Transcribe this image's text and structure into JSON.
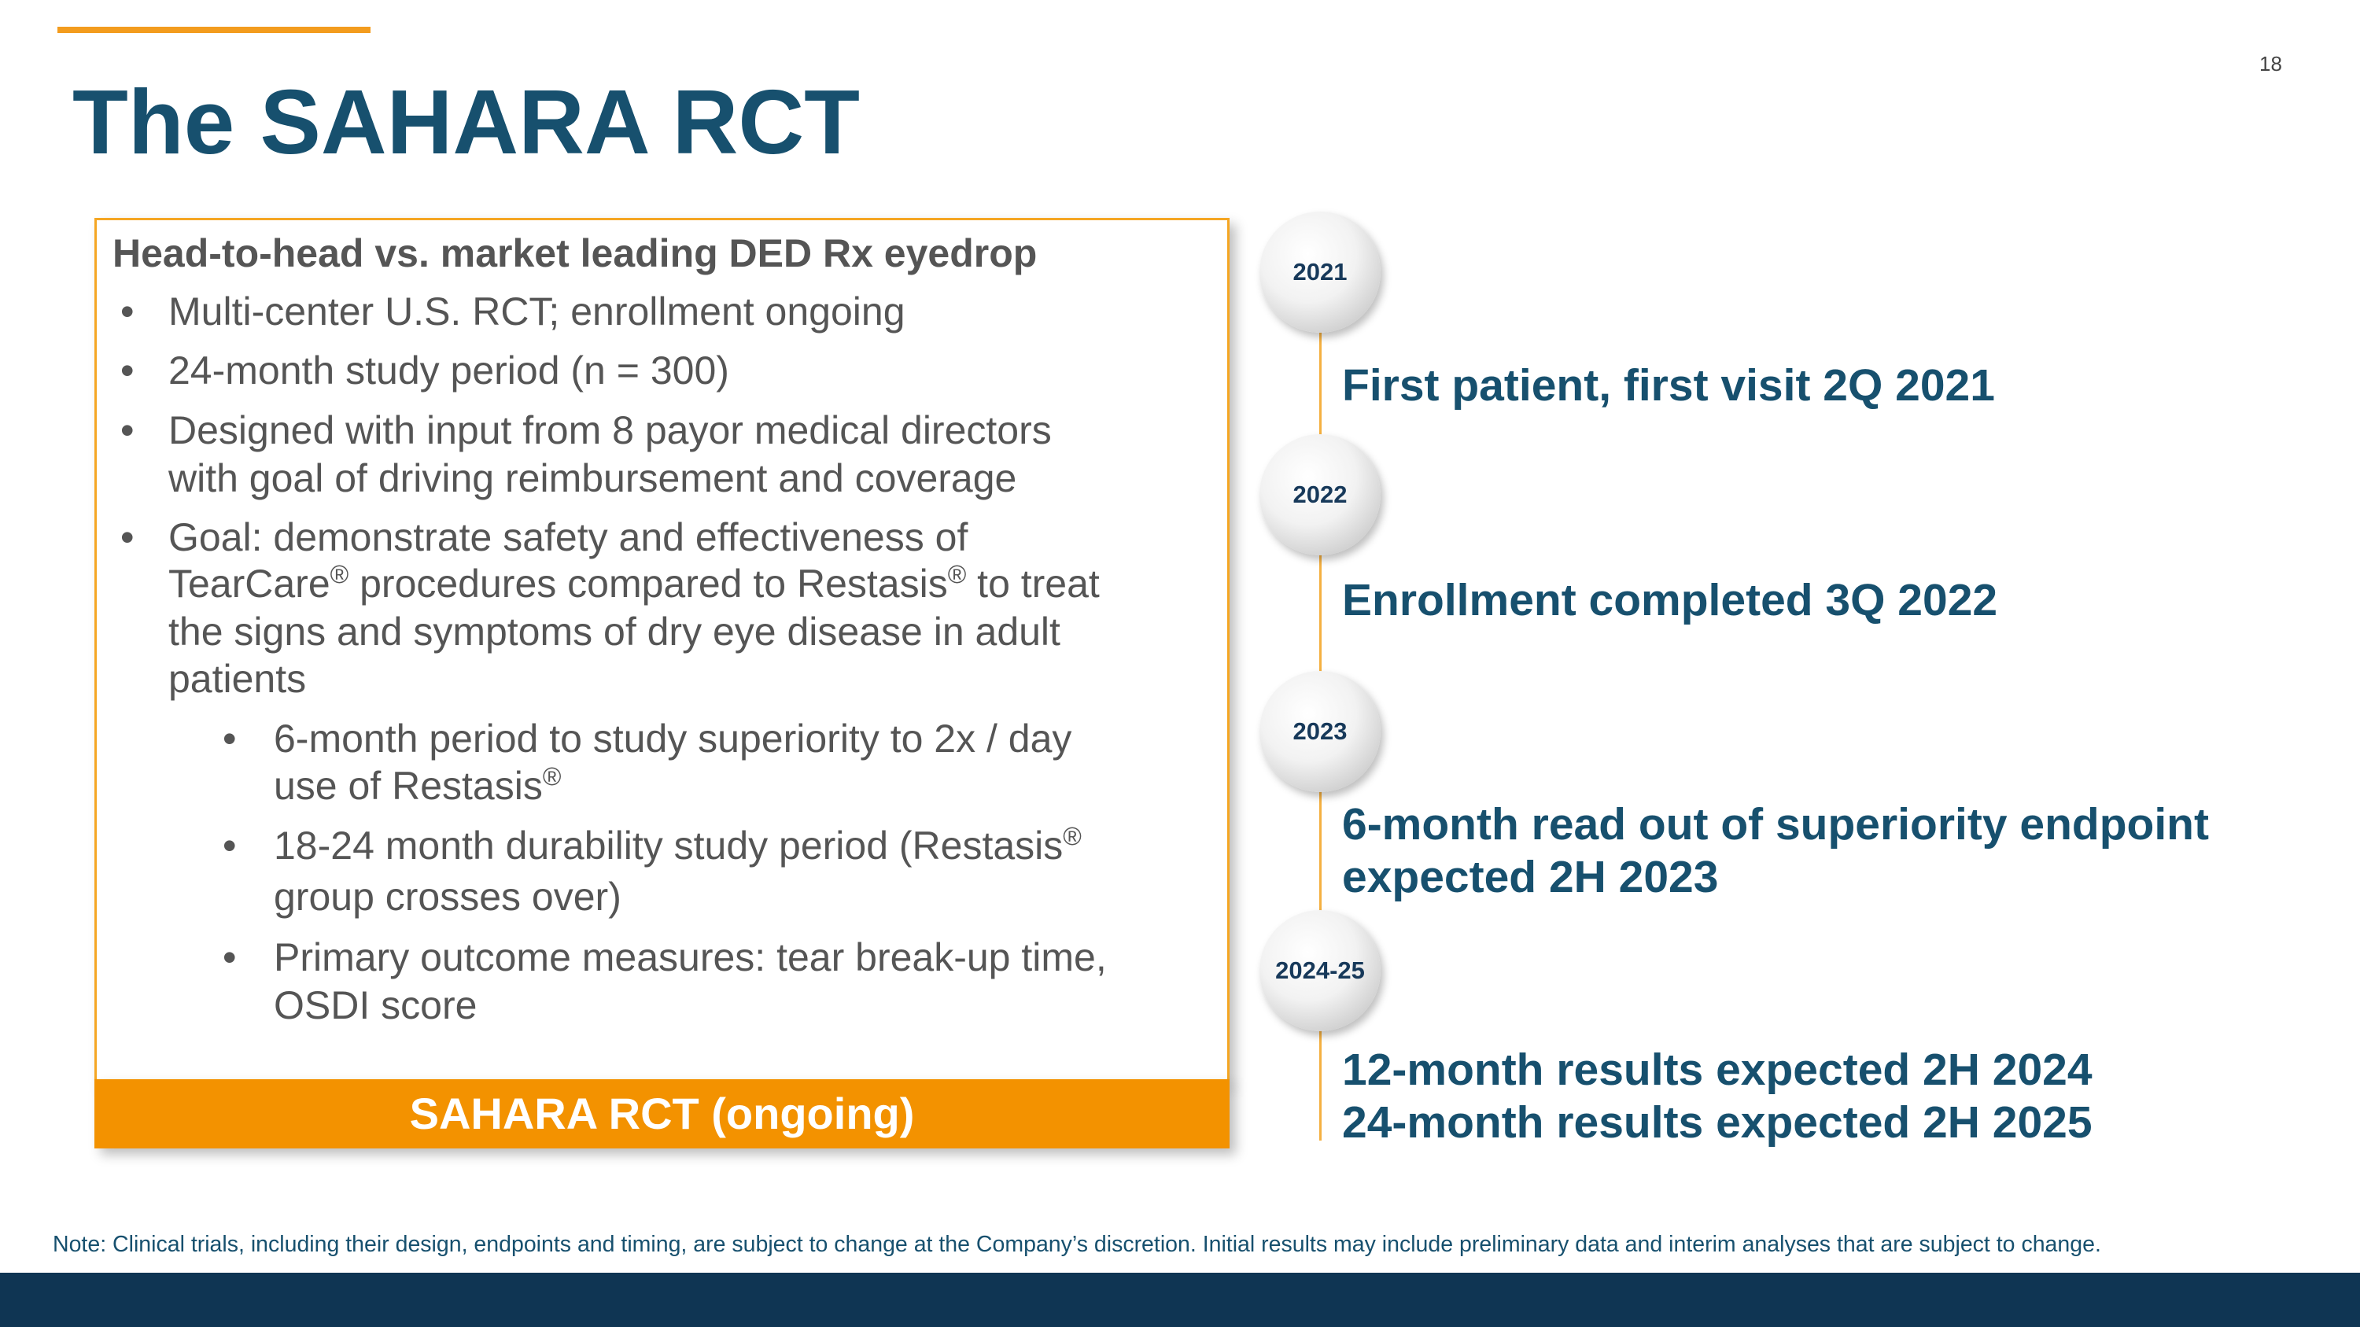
{
  "page_number": "18",
  "title": "The SAHARA RCT",
  "box": {
    "heading": "Head-to-head vs. market leading DED Rx eyedrop",
    "items": [
      {
        "level": 1,
        "lines": [
          "Multi-center U.S. RCT; enrollment ongoing"
        ]
      },
      {
        "level": 1,
        "lines": [
          "24-month study period (n = 300)"
        ]
      },
      {
        "level": 1,
        "lines": [
          "Designed with input from 8 payor medical directors",
          "with goal of driving reimbursement and coverage"
        ]
      },
      {
        "level": 1,
        "lines": [
          "Goal: demonstrate safety and effectiveness of",
          "TearCare® procedures compared to Restasis® to treat",
          "the signs and symptoms of dry eye disease in adult",
          "patients"
        ]
      },
      {
        "level": 2,
        "lines": [
          "6-month period to study superiority to 2x / day",
          "use of Restasis®"
        ]
      },
      {
        "level": 2,
        "lines": [
          "18-24 month durability study period (Restasis®",
          "group crosses over)"
        ]
      },
      {
        "level": 2,
        "lines": [
          "Primary outcome measures: tear break-up time,",
          "OSDI score"
        ]
      }
    ],
    "banner": "SAHARA RCT (ongoing)"
  },
  "timeline": [
    {
      "year": "2021",
      "lines": [
        "First patient, first visit 2Q 2021"
      ]
    },
    {
      "year": "2022",
      "lines": [
        "Enrollment completed 3Q 2022"
      ]
    },
    {
      "year": "2023",
      "lines": [
        "6-month read out of superiority endpoint",
        "expected 2H 2023"
      ]
    },
    {
      "year": "2024-25",
      "lines": [
        "12-month results expected 2H 2024",
        "24-month results expected 2H 2025"
      ]
    }
  ],
  "note": "Note: Clinical trials, including their design, endpoints and timing, are subject to change at the Company’s discretion. Initial results may include preliminary data and interim analyses that are subject to change."
}
